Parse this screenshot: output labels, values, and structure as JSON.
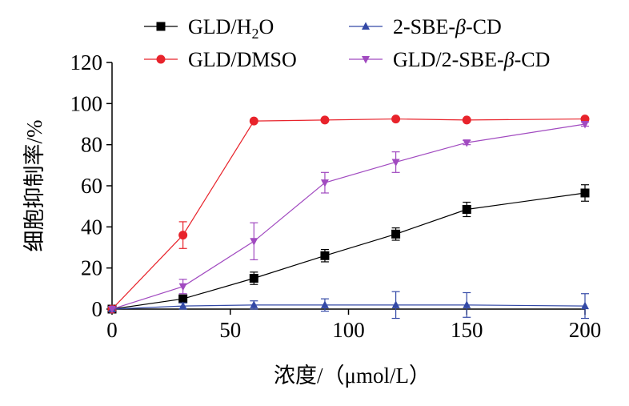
{
  "chart_data": {
    "type": "line",
    "title": "",
    "xlabel": "浓度/（μmol/L）",
    "ylabel": "细胞抑制率/%",
    "xlim": [
      0,
      200
    ],
    "ylim": [
      0,
      120
    ],
    "x_ticks": [
      0,
      50,
      100,
      150,
      200
    ],
    "y_ticks": [
      0,
      20,
      40,
      60,
      80,
      100,
      120
    ],
    "grid": false,
    "legend_position": "top",
    "series": [
      {
        "name": "GLD/H₂O",
        "name_main": "GLD/H",
        "name_sub": "2",
        "name_tail": "O",
        "color": "#000000",
        "marker": "square",
        "x": [
          0,
          30,
          60,
          90,
          120,
          150,
          200
        ],
        "y": [
          0,
          5,
          15,
          26,
          36.5,
          48.5,
          56.5
        ],
        "err": [
          0,
          1.5,
          3,
          3,
          3,
          3.5,
          4
        ]
      },
      {
        "name": "GLD/DMSO",
        "color": "#e8232b",
        "marker": "circle",
        "x": [
          0,
          30,
          60,
          90,
          120,
          150,
          200
        ],
        "y": [
          0,
          36,
          91.5,
          92,
          92.5,
          92,
          92.5
        ],
        "err": [
          0,
          6.5,
          0,
          0,
          0,
          0,
          0
        ]
      },
      {
        "name": "2-SBE-β-CD",
        "name_main": "2-SBE-",
        "name_italic": "β",
        "name_tail": "-CD",
        "color": "#3349a6",
        "marker": "triangle-up",
        "x": [
          0,
          30,
          60,
          90,
          120,
          150,
          200
        ],
        "y": [
          0,
          1.5,
          2,
          2,
          2,
          2,
          1.5
        ],
        "err": [
          0,
          1.5,
          2,
          3,
          6.5,
          6,
          6
        ]
      },
      {
        "name": "GLD/2-SBE-β-CD",
        "name_main": "GLD/2-SBE-",
        "name_italic": "β",
        "name_tail": "-CD",
        "color": "#a14ac0",
        "marker": "triangle-down",
        "x": [
          0,
          30,
          60,
          90,
          120,
          150,
          200
        ],
        "y": [
          0,
          11,
          33,
          61.5,
          71.5,
          81,
          90
        ],
        "err": [
          0,
          3.5,
          9,
          5,
          5,
          1,
          1
        ]
      }
    ]
  }
}
